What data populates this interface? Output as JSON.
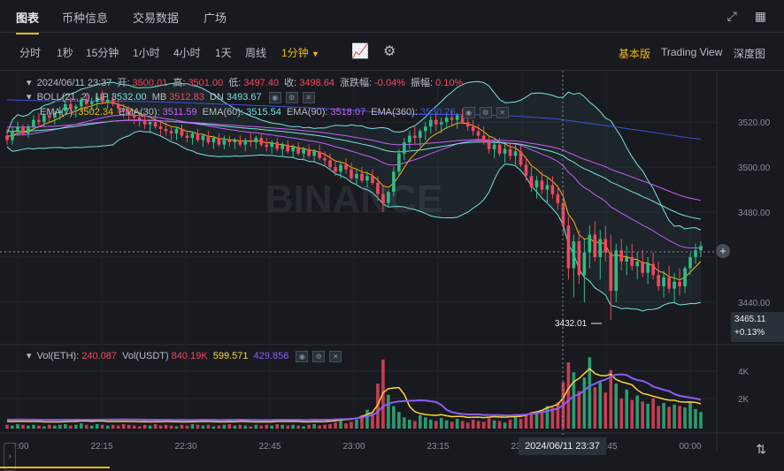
{
  "top_tabs": [
    "图表",
    "币种信息",
    "交易数据",
    "广场"
  ],
  "toolbar": {
    "timeframes": [
      "分时",
      "1秒",
      "15分钟",
      "1小时",
      "4小时",
      "1天",
      "周线",
      "1分钟"
    ],
    "active_timeframe": "1分钟",
    "views": [
      "基本版",
      "Trading View",
      "深度图"
    ],
    "active_view": "基本版"
  },
  "ohlc": {
    "datetime": "2024/06/11 23:37",
    "open_label": "开:",
    "open": "3500.01",
    "high_label": "高:",
    "high": "3501.00",
    "low_label": "低:",
    "low": "3497.40",
    "close_label": "收:",
    "close": "3498.64",
    "change_label": "涨跌幅:",
    "change": "-0.04%",
    "amplitude_label": "振幅:",
    "amplitude": "0.10%"
  },
  "boll": {
    "label": "BOLL(21, 2)",
    "up_label": "UP",
    "up": "3532.00",
    "mb_label": "MB",
    "mb": "3512.83",
    "dn_label": "DN",
    "dn": "3493.67"
  },
  "ema": [
    {
      "label": "EMA(7):",
      "value": "3502.34",
      "color": "#f0b90b"
    },
    {
      "label": "EMA(30):",
      "value": "3511.59",
      "color": "#c65ef7"
    },
    {
      "label": "EMA(60):",
      "value": "3515.54",
      "color": "#76e3dd"
    },
    {
      "label": "EMA(90):",
      "value": "3518.07",
      "color": "#c65ef7"
    },
    {
      "label": "EMA(360):",
      "value": "3530.26",
      "color": "#3f51d6"
    }
  ],
  "volume_legend": {
    "vol_eth_label": "Vol(ETH):",
    "vol_eth": "240.087",
    "vol_usdt_label": "Vol(USDT)",
    "vol_usdt": "840.19K",
    "ma1": "599.571",
    "ma2": "429.856"
  },
  "price_tag": {
    "price": "3465.11",
    "change": "+0.13%"
  },
  "crosshair_time": "2024/06/11 23:37",
  "low_annotation": "3432.01",
  "watermark": "BINANCE",
  "colors": {
    "up": "#2ebd85",
    "down": "#f6465d",
    "accent": "#f0b90b",
    "background": "#181a20"
  },
  "chart_data": {
    "type": "candlestick",
    "x_ticks": [
      "22:00",
      "22:15",
      "22:30",
      "22:45",
      "23:00",
      "23:15",
      "23:30",
      "23:45",
      "00:00"
    ],
    "price_ticks": [
      3520.0,
      3500.0,
      3480.0,
      3460.0,
      3440.0
    ],
    "price_tick_labels": [
      "3520.00",
      "3500.00",
      "3480.00",
      "3440.00"
    ],
    "volume_ticks": [
      "4K",
      "2K"
    ],
    "start_time": "22:00",
    "interval_minutes": 1,
    "candles": [
      [
        3514,
        3517,
        3510,
        3512
      ],
      [
        3512,
        3518,
        3510,
        3516
      ],
      [
        3516,
        3520,
        3514,
        3518
      ],
      [
        3518,
        3519,
        3514,
        3515
      ],
      [
        3515,
        3519,
        3513,
        3518
      ],
      [
        3518,
        3523,
        3516,
        3521
      ],
      [
        3521,
        3524,
        3518,
        3520
      ],
      [
        3520,
        3524,
        3518,
        3523
      ],
      [
        3523,
        3526,
        3520,
        3522
      ],
      [
        3522,
        3525,
        3519,
        3524
      ],
      [
        3524,
        3527,
        3521,
        3525
      ],
      [
        3525,
        3530,
        3523,
        3528
      ],
      [
        3528,
        3531,
        3524,
        3526
      ],
      [
        3526,
        3528,
        3522,
        3527
      ],
      [
        3527,
        3531,
        3525,
        3530
      ],
      [
        3530,
        3533,
        3527,
        3528
      ],
      [
        3528,
        3531,
        3525,
        3529
      ],
      [
        3529,
        3533,
        3526,
        3531
      ],
      [
        3531,
        3534,
        3528,
        3529
      ],
      [
        3529,
        3532,
        3526,
        3530
      ],
      [
        3530,
        3533,
        3527,
        3528
      ],
      [
        3528,
        3530,
        3524,
        3526
      ],
      [
        3526,
        3528,
        3522,
        3525
      ],
      [
        3525,
        3527,
        3521,
        3523
      ],
      [
        3523,
        3525,
        3519,
        3522
      ],
      [
        3522,
        3524,
        3518,
        3521
      ],
      [
        3521,
        3523,
        3517,
        3519
      ],
      [
        3519,
        3521,
        3515,
        3520
      ],
      [
        3520,
        3523,
        3517,
        3518
      ],
      [
        3518,
        3520,
        3514,
        3517
      ],
      [
        3517,
        3520,
        3514,
        3516
      ],
      [
        3516,
        3518,
        3512,
        3515
      ],
      [
        3515,
        3518,
        3512,
        3517
      ],
      [
        3517,
        3519,
        3513,
        3514
      ],
      [
        3514,
        3516,
        3511,
        3513
      ],
      [
        3513,
        3516,
        3510,
        3515
      ],
      [
        3515,
        3517,
        3511,
        3512
      ],
      [
        3512,
        3515,
        3509,
        3514
      ],
      [
        3514,
        3516,
        3510,
        3511
      ],
      [
        3511,
        3514,
        3508,
        3513
      ],
      [
        3513,
        3515,
        3509,
        3510
      ],
      [
        3510,
        3514,
        3508,
        3512
      ],
      [
        3512,
        3514,
        3509,
        3511
      ],
      [
        3511,
        3513,
        3508,
        3512
      ],
      [
        3512,
        3514,
        3509,
        3510
      ],
      [
        3510,
        3513,
        3507,
        3512
      ],
      [
        3512,
        3515,
        3509,
        3511
      ],
      [
        3511,
        3514,
        3508,
        3513
      ],
      [
        3513,
        3515,
        3509,
        3510
      ],
      [
        3510,
        3513,
        3507,
        3509
      ],
      [
        3509,
        3512,
        3506,
        3511
      ],
      [
        3511,
        3513,
        3507,
        3508
      ],
      [
        3508,
        3511,
        3505,
        3510
      ],
      [
        3510,
        3512,
        3506,
        3507
      ],
      [
        3507,
        3510,
        3504,
        3509
      ],
      [
        3509,
        3511,
        3505,
        3506
      ],
      [
        3506,
        3509,
        3503,
        3508
      ],
      [
        3508,
        3510,
        3504,
        3505
      ],
      [
        3505,
        3508,
        3502,
        3507
      ],
      [
        3507,
        3510,
        3503,
        3504
      ],
      [
        3504,
        3507,
        3501,
        3503
      ],
      [
        3503,
        3506,
        3499,
        3500
      ],
      [
        3500,
        3503,
        3496,
        3498
      ],
      [
        3498,
        3502,
        3495,
        3501
      ],
      [
        3501,
        3504,
        3497,
        3499
      ],
      [
        3499,
        3502,
        3494,
        3495
      ],
      [
        3495,
        3499,
        3492,
        3497
      ],
      [
        3497,
        3500,
        3493,
        3494
      ],
      [
        3494,
        3498,
        3491,
        3496
      ],
      [
        3496,
        3499,
        3492,
        3493
      ],
      [
        3493,
        3496,
        3485,
        3488
      ],
      [
        3488,
        3492,
        3480,
        3484
      ],
      [
        3484,
        3490,
        3482,
        3489
      ],
      [
        3489,
        3500,
        3487,
        3498
      ],
      [
        3498,
        3508,
        3496,
        3506
      ],
      [
        3506,
        3513,
        3503,
        3511
      ],
      [
        3511,
        3516,
        3508,
        3514
      ],
      [
        3514,
        3518,
        3510,
        3513
      ],
      [
        3513,
        3517,
        3509,
        3516
      ],
      [
        3516,
        3520,
        3512,
        3518
      ],
      [
        3518,
        3523,
        3515,
        3521
      ],
      [
        3521,
        3524,
        3516,
        3519
      ],
      [
        3519,
        3522,
        3515,
        3520
      ],
      [
        3520,
        3524,
        3517,
        3522
      ],
      [
        3522,
        3525,
        3518,
        3521
      ],
      [
        3521,
        3524,
        3517,
        3523
      ],
      [
        3523,
        3526,
        3519,
        3520
      ],
      [
        3520,
        3523,
        3516,
        3518
      ],
      [
        3518,
        3521,
        3514,
        3516
      ],
      [
        3516,
        3519,
        3512,
        3514
      ],
      [
        3514,
        3518,
        3510,
        3511
      ],
      [
        3511,
        3514,
        3506,
        3508
      ],
      [
        3508,
        3512,
        3504,
        3510
      ],
      [
        3510,
        3513,
        3505,
        3506
      ],
      [
        3506,
        3510,
        3502,
        3508
      ],
      [
        3508,
        3511,
        3503,
        3505
      ],
      [
        3505,
        3510,
        3501,
        3507
      ],
      [
        3507,
        3510,
        3500,
        3501
      ],
      [
        3501,
        3504,
        3494,
        3496
      ],
      [
        3496,
        3500,
        3489,
        3491
      ],
      [
        3491,
        3496,
        3486,
        3494
      ],
      [
        3494,
        3498,
        3488,
        3490
      ],
      [
        3490,
        3495,
        3484,
        3492
      ],
      [
        3492,
        3496,
        3486,
        3488
      ],
      [
        3488,
        3492,
        3481,
        3484
      ],
      [
        3484,
        3489,
        3470,
        3474
      ],
      [
        3474,
        3478,
        3450,
        3455
      ],
      [
        3455,
        3470,
        3442,
        3467
      ],
      [
        3467,
        3472,
        3448,
        3452
      ],
      [
        3452,
        3468,
        3440,
        3462
      ],
      [
        3462,
        3474,
        3455,
        3470
      ],
      [
        3470,
        3476,
        3458,
        3460
      ],
      [
        3460,
        3472,
        3450,
        3468
      ],
      [
        3468,
        3474,
        3458,
        3462
      ],
      [
        3462,
        3470,
        3432,
        3445
      ],
      [
        3445,
        3466,
        3440,
        3463
      ],
      [
        3463,
        3468,
        3454,
        3458
      ],
      [
        3458,
        3465,
        3452,
        3460
      ],
      [
        3460,
        3466,
        3454,
        3456
      ],
      [
        3456,
        3462,
        3450,
        3458
      ],
      [
        3458,
        3463,
        3451,
        3453
      ],
      [
        3453,
        3460,
        3448,
        3457
      ],
      [
        3457,
        3462,
        3450,
        3452
      ],
      [
        3452,
        3458,
        3445,
        3447
      ],
      [
        3447,
        3454,
        3442,
        3451
      ],
      [
        3451,
        3456,
        3444,
        3446
      ],
      [
        3446,
        3453,
        3440,
        3449
      ],
      [
        3449,
        3455,
        3443,
        3447
      ],
      [
        3447,
        3456,
        3444,
        3455
      ],
      [
        3455,
        3462,
        3452,
        3460
      ],
      [
        3460,
        3466,
        3457,
        3463
      ],
      [
        3463,
        3467,
        3460,
        3465
      ]
    ],
    "volume_heights_frac": [
      0.05,
      0.04,
      0.06,
      0.05,
      0.04,
      0.05,
      0.04,
      0.03,
      0.05,
      0.04,
      0.05,
      0.06,
      0.04,
      0.05,
      0.07,
      0.05,
      0.04,
      0.06,
      0.05,
      0.04,
      0.05,
      0.04,
      0.06,
      0.05,
      0.04,
      0.03,
      0.05,
      0.04,
      0.06,
      0.04,
      0.05,
      0.04,
      0.03,
      0.05,
      0.04,
      0.06,
      0.05,
      0.04,
      0.05,
      0.03,
      0.04,
      0.05,
      0.06,
      0.04,
      0.05,
      0.04,
      0.03,
      0.05,
      0.04,
      0.05,
      0.04,
      0.06,
      0.05,
      0.04,
      0.05,
      0.04,
      0.03,
      0.05,
      0.06,
      0.04,
      0.05,
      0.06,
      0.08,
      0.1,
      0.07,
      0.09,
      0.12,
      0.18,
      0.25,
      0.2,
      0.6,
      0.92,
      0.45,
      0.3,
      0.22,
      0.15,
      0.12,
      0.1,
      0.18,
      0.15,
      0.12,
      0.1,
      0.14,
      0.11,
      0.09,
      0.13,
      0.1,
      0.08,
      0.12,
      0.1,
      0.09,
      0.14,
      0.11,
      0.1,
      0.08,
      0.12,
      0.15,
      0.13,
      0.18,
      0.22,
      0.2,
      0.25,
      0.3,
      0.28,
      0.35,
      0.62,
      0.88,
      0.75,
      0.5,
      0.68,
      0.95,
      0.55,
      0.62,
      0.48,
      0.78,
      0.6,
      0.4,
      0.52,
      0.38,
      0.44,
      0.36,
      0.33,
      0.4,
      0.3,
      0.34,
      0.29,
      0.32,
      0.3,
      0.28,
      0.35,
      0.26,
      0.22
    ]
  }
}
